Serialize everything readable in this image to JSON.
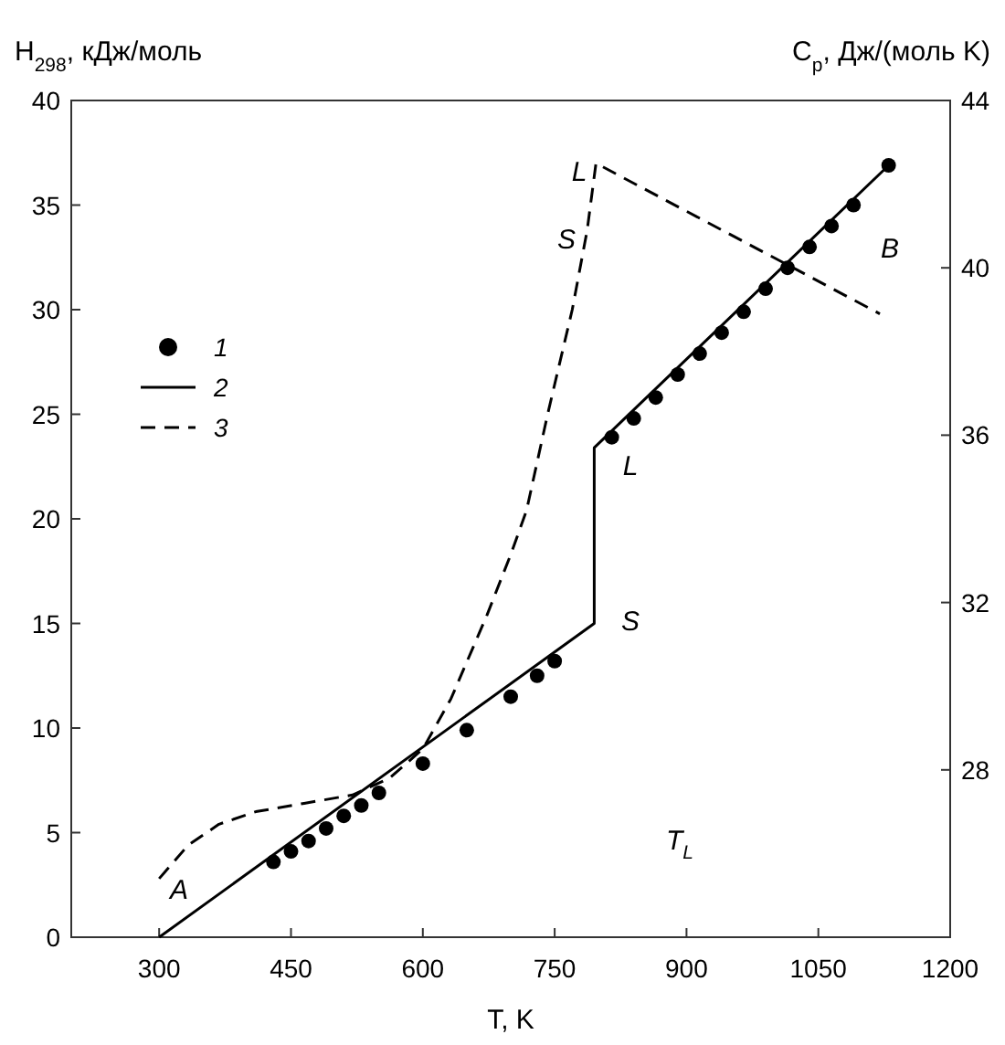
{
  "chart_data": {
    "type": "line",
    "xlabel": "T, K",
    "ylabel": "H$_{298}$, кДж/моль",
    "y2label": "C$_{p}$, Дж/(моль K)",
    "xlim": [
      200,
      1200
    ],
    "xticks": [
      300,
      450,
      600,
      750,
      900,
      1050,
      1200
    ],
    "ylim": [
      0,
      40
    ],
    "yticks": [
      0,
      5,
      10,
      15,
      20,
      25,
      30,
      35,
      40
    ],
    "y2lim": [
      24,
      44
    ],
    "y2ticks": [
      28,
      32,
      36,
      40,
      44
    ],
    "legend": "top left",
    "grid": false,
    "series": [
      {
        "name": "1",
        "type": "scatter",
        "marker": "circle",
        "color": "#000000",
        "x": [
          430,
          450,
          470,
          490,
          510,
          530,
          550,
          600,
          650,
          700,
          730,
          750,
          815,
          840,
          865,
          890,
          915,
          940,
          965,
          990,
          1015,
          1040,
          1065,
          1090,
          1130
        ],
        "values": [
          3.6,
          4.1,
          4.6,
          5.2,
          5.8,
          6.3,
          6.9,
          8.3,
          9.9,
          11.5,
          12.5,
          13.2,
          23.9,
          24.8,
          25.8,
          26.9,
          27.9,
          28.9,
          29.9,
          31.0,
          32.0,
          33.0,
          34.0,
          35.0,
          36.9
        ]
      },
      {
        "name": "2",
        "type": "line",
        "line_style": "solid",
        "color": "#000000",
        "x": [
          300,
          795,
          795,
          1130
        ],
        "values": [
          0,
          15.0,
          23.4,
          36.9
        ]
      },
      {
        "name": "3",
        "type": "line",
        "line_style": "dashed",
        "axis": "y2",
        "color": "#000000",
        "x": [
          300,
          333,
          368,
          410,
          465,
          520,
          562,
          600,
          632,
          673,
          701,
          718,
          742,
          770,
          787,
          797,
          1120
        ],
        "values": [
          25.4,
          26.2,
          26.7,
          27.0,
          27.2,
          27.4,
          27.8,
          28.5,
          29.7,
          31.7,
          33.2,
          34.2,
          36.5,
          39.0,
          40.9,
          42.5,
          38.9
        ]
      }
    ],
    "annotations": [
      "A",
      "S",
      "L",
      "L",
      "S",
      "B",
      "T$_{L}$"
    ]
  }
}
